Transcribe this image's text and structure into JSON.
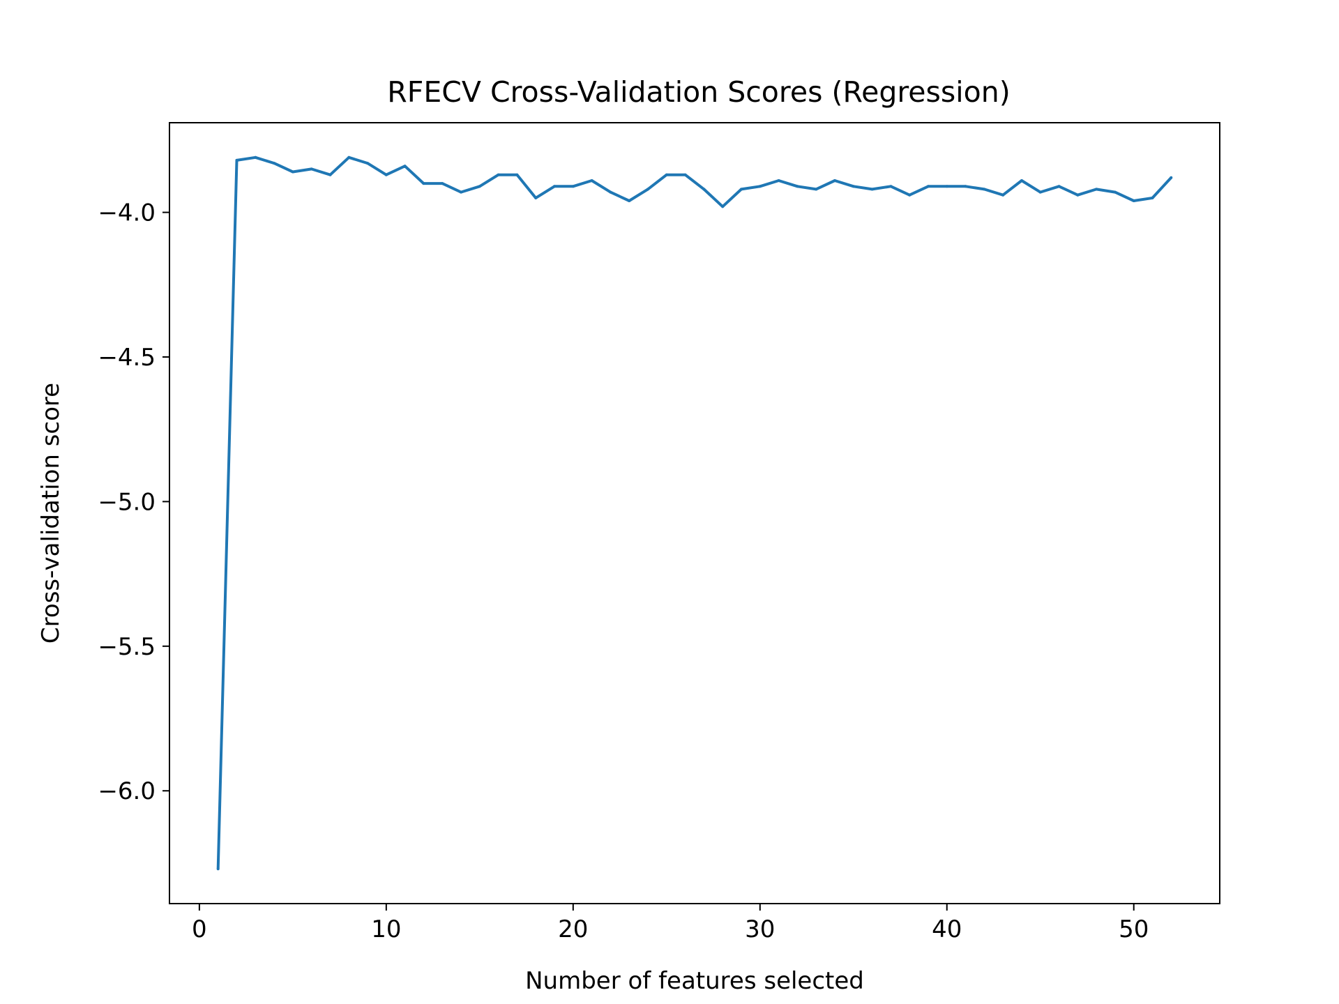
{
  "chart_data": {
    "type": "line",
    "title": "RFECV Cross-Validation Scores (Regression)",
    "xlabel": "Number of features selected",
    "ylabel": "Cross-validation score",
    "xlim": [
      -1.6,
      54.6
    ],
    "ylim": [
      -6.39,
      -3.69
    ],
    "xticks": [
      0,
      10,
      20,
      30,
      40,
      50
    ],
    "xtick_labels": [
      "0",
      "10",
      "20",
      "30",
      "40",
      "50"
    ],
    "yticks": [
      -4.0,
      -4.5,
      -5.0,
      -5.5,
      -6.0
    ],
    "ytick_labels": [
      "−4.0",
      "−4.5",
      "−5.0",
      "−5.5",
      "−6.0"
    ],
    "grid": false,
    "series": [
      {
        "color": "#1f77b4",
        "x": [
          1,
          2,
          3,
          4,
          5,
          6,
          7,
          8,
          9,
          10,
          11,
          12,
          13,
          14,
          15,
          16,
          17,
          18,
          19,
          20,
          21,
          22,
          23,
          24,
          25,
          26,
          27,
          28,
          29,
          30,
          31,
          32,
          33,
          34,
          35,
          36,
          37,
          38,
          39,
          40,
          41,
          42,
          43,
          44,
          45,
          46,
          47,
          48,
          49,
          50,
          51,
          52
        ],
        "y": [
          -6.27,
          -3.82,
          -3.81,
          -3.83,
          -3.86,
          -3.85,
          -3.87,
          -3.81,
          -3.83,
          -3.87,
          -3.84,
          -3.9,
          -3.9,
          -3.93,
          -3.91,
          -3.87,
          -3.87,
          -3.95,
          -3.91,
          -3.91,
          -3.89,
          -3.93,
          -3.96,
          -3.92,
          -3.87,
          -3.87,
          -3.92,
          -3.98,
          -3.92,
          -3.91,
          -3.89,
          -3.91,
          -3.92,
          -3.89,
          -3.91,
          -3.92,
          -3.91,
          -3.94,
          -3.91,
          -3.91,
          -3.91,
          -3.92,
          -3.94,
          -3.89,
          -3.93,
          -3.91,
          -3.94,
          -3.92,
          -3.93,
          -3.96,
          -3.95,
          -3.88
        ]
      }
    ]
  }
}
